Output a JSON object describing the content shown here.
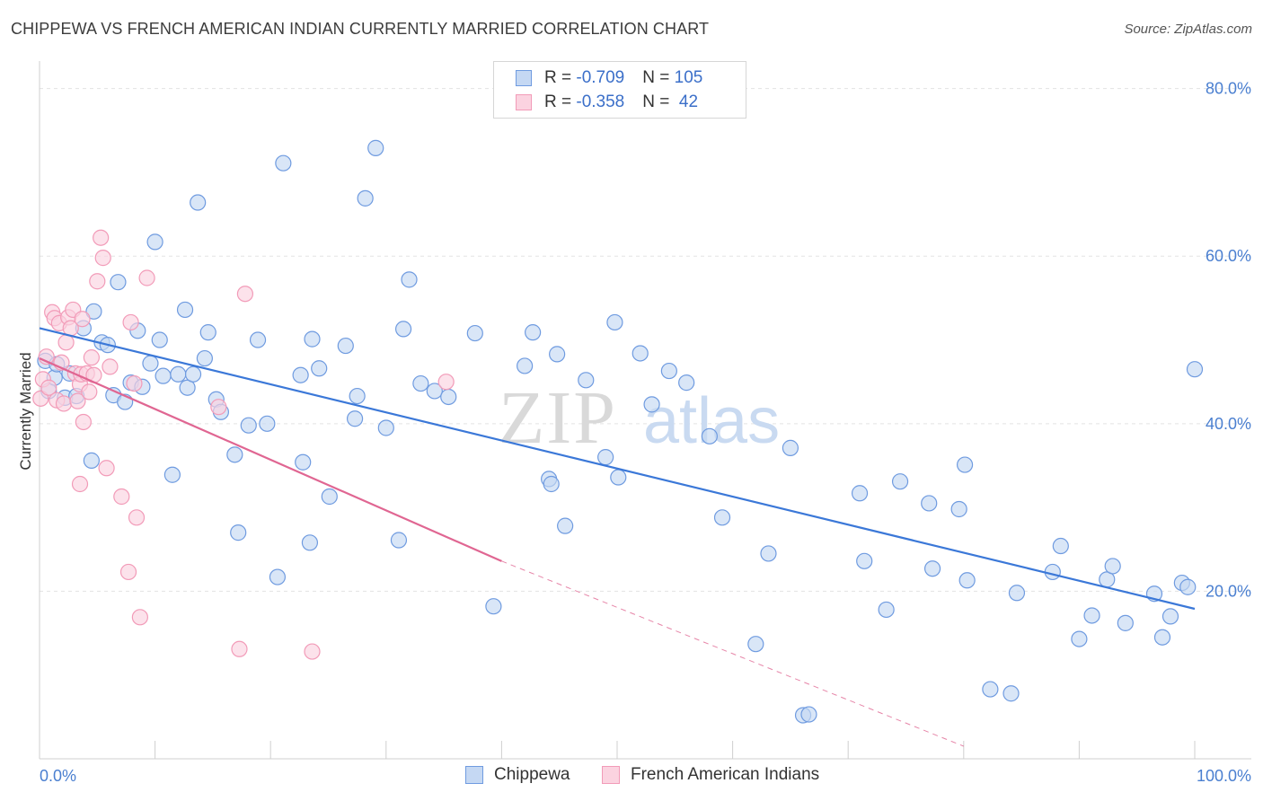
{
  "header": {
    "title": "CHIPPEWA VS FRENCH AMERICAN INDIAN CURRENTLY MARRIED CORRELATION CHART",
    "source": "Source: ZipAtlas.com"
  },
  "watermark": {
    "part1": "ZIP",
    "part2": "atlas"
  },
  "legend": {
    "rows": [
      {
        "r_label": "R = ",
        "r_value": "-0.709",
        "n_label": "N = ",
        "n_value": "105",
        "color": "#6f9be0",
        "fill": "#c5d8f3"
      },
      {
        "r_label": "R = ",
        "r_value": "-0.358",
        "n_label": "N = ",
        "n_value": " 42",
        "color": "#f29bb8",
        "fill": "#fbd3e0"
      }
    ]
  },
  "bottom_legend": {
    "items": [
      {
        "label": "Chippewa",
        "color": "#6f9be0",
        "fill": "#c5d8f3"
      },
      {
        "label": "French American Indians",
        "color": "#f29bb8",
        "fill": "#fbd3e0"
      }
    ]
  },
  "chart_data": {
    "type": "scatter",
    "ylabel": "Currently Married",
    "xlim": [
      0,
      100
    ],
    "ylim": [
      0,
      82
    ],
    "x_tick_labels": [
      "0.0%",
      "100.0%"
    ],
    "y_ticks": [
      20,
      40,
      60,
      80
    ],
    "y_tick_labels": [
      "20.0%",
      "40.0%",
      "60.0%",
      "80.0%"
    ],
    "grid": true,
    "series": [
      {
        "name": "Chippewa",
        "color": "#6f9be0",
        "fill": "#c5d8f3",
        "line_color": "#3b78d8",
        "trend": {
          "x": [
            0,
            100
          ],
          "y": [
            51.4,
            17.9
          ]
        },
        "points": [
          [
            0.5,
            47.5
          ],
          [
            0.8,
            43.9
          ],
          [
            1.3,
            45.5
          ],
          [
            1.5,
            47.1
          ],
          [
            2.2,
            43.1
          ],
          [
            2.6,
            46.0
          ],
          [
            3.2,
            43.3
          ],
          [
            3.8,
            51.4
          ],
          [
            4.5,
            35.6
          ],
          [
            4.7,
            53.4
          ],
          [
            5.4,
            49.7
          ],
          [
            5.9,
            49.4
          ],
          [
            6.4,
            43.4
          ],
          [
            6.8,
            56.9
          ],
          [
            7.4,
            42.6
          ],
          [
            7.9,
            44.9
          ],
          [
            8.5,
            51.1
          ],
          [
            8.9,
            44.4
          ],
          [
            9.6,
            47.2
          ],
          [
            10.0,
            61.7
          ],
          [
            10.4,
            50.0
          ],
          [
            10.7,
            45.7
          ],
          [
            11.5,
            33.9
          ],
          [
            12.0,
            45.9
          ],
          [
            12.6,
            53.6
          ],
          [
            12.8,
            44.3
          ],
          [
            13.3,
            45.9
          ],
          [
            13.7,
            66.4
          ],
          [
            14.3,
            47.8
          ],
          [
            14.6,
            50.9
          ],
          [
            15.3,
            42.9
          ],
          [
            15.7,
            41.4
          ],
          [
            16.9,
            36.3
          ],
          [
            17.2,
            27.0
          ],
          [
            18.1,
            39.8
          ],
          [
            18.9,
            50.0
          ],
          [
            19.7,
            40.0
          ],
          [
            20.6,
            21.7
          ],
          [
            21.1,
            71.1
          ],
          [
            22.6,
            45.8
          ],
          [
            22.8,
            35.4
          ],
          [
            23.4,
            25.8
          ],
          [
            23.6,
            50.1
          ],
          [
            24.2,
            46.6
          ],
          [
            25.1,
            31.3
          ],
          [
            26.5,
            49.3
          ],
          [
            27.3,
            40.6
          ],
          [
            27.5,
            43.3
          ],
          [
            28.2,
            66.9
          ],
          [
            29.1,
            72.9
          ],
          [
            30.0,
            39.5
          ],
          [
            31.1,
            26.1
          ],
          [
            31.5,
            51.3
          ],
          [
            32.0,
            57.2
          ],
          [
            33.0,
            44.8
          ],
          [
            34.2,
            43.9
          ],
          [
            35.4,
            43.2
          ],
          [
            37.7,
            50.8
          ],
          [
            39.3,
            18.2
          ],
          [
            42.0,
            46.9
          ],
          [
            42.7,
            50.9
          ],
          [
            44.1,
            33.4
          ],
          [
            44.3,
            32.8
          ],
          [
            44.8,
            48.3
          ],
          [
            45.5,
            27.8
          ],
          [
            47.3,
            45.2
          ],
          [
            49.0,
            36.0
          ],
          [
            49.8,
            52.1
          ],
          [
            50.1,
            33.6
          ],
          [
            52.0,
            48.4
          ],
          [
            53.0,
            42.3
          ],
          [
            54.5,
            46.3
          ],
          [
            56.0,
            44.9
          ],
          [
            58.0,
            38.5
          ],
          [
            59.1,
            28.8
          ],
          [
            62.0,
            13.7
          ],
          [
            63.1,
            24.5
          ],
          [
            65.0,
            37.1
          ],
          [
            66.1,
            5.2
          ],
          [
            66.6,
            5.3
          ],
          [
            71.0,
            31.7
          ],
          [
            71.4,
            23.6
          ],
          [
            73.3,
            17.8
          ],
          [
            74.5,
            33.1
          ],
          [
            77.0,
            30.5
          ],
          [
            77.3,
            22.7
          ],
          [
            79.6,
            29.8
          ],
          [
            80.1,
            35.1
          ],
          [
            80.3,
            21.3
          ],
          [
            82.3,
            8.3
          ],
          [
            84.1,
            7.8
          ],
          [
            84.6,
            19.8
          ],
          [
            87.7,
            22.3
          ],
          [
            88.4,
            25.4
          ],
          [
            90.0,
            14.3
          ],
          [
            91.1,
            17.1
          ],
          [
            92.4,
            21.4
          ],
          [
            92.9,
            23.0
          ],
          [
            94.0,
            16.2
          ],
          [
            96.5,
            19.7
          ],
          [
            97.2,
            14.5
          ],
          [
            97.9,
            17.0
          ],
          [
            98.9,
            21.0
          ],
          [
            99.4,
            20.5
          ],
          [
            100.0,
            46.5
          ]
        ]
      },
      {
        "name": "French American Indians",
        "color": "#f29bb8",
        "fill": "#fbd3e0",
        "line_color": "#e06692",
        "trend": {
          "x": [
            0,
            40
          ],
          "y": [
            47.8,
            23.6
          ]
        },
        "trend_dashed": {
          "x": [
            40,
            80
          ],
          "y": [
            23.6,
            1.5
          ]
        },
        "points": [
          [
            0.1,
            43.0
          ],
          [
            0.3,
            45.3
          ],
          [
            0.6,
            48.0
          ],
          [
            0.8,
            44.3
          ],
          [
            1.1,
            53.3
          ],
          [
            1.3,
            52.6
          ],
          [
            1.5,
            42.8
          ],
          [
            1.7,
            52.0
          ],
          [
            1.9,
            47.3
          ],
          [
            2.1,
            42.4
          ],
          [
            2.3,
            49.7
          ],
          [
            2.5,
            52.7
          ],
          [
            2.7,
            51.4
          ],
          [
            2.9,
            53.6
          ],
          [
            3.1,
            46.0
          ],
          [
            3.3,
            42.7
          ],
          [
            3.5,
            44.7
          ],
          [
            3.6,
            45.9
          ],
          [
            3.7,
            52.5
          ],
          [
            3.8,
            40.2
          ],
          [
            4.1,
            46.0
          ],
          [
            4.3,
            43.8
          ],
          [
            4.5,
            47.9
          ],
          [
            4.7,
            45.8
          ],
          [
            5.0,
            57.0
          ],
          [
            5.3,
            62.2
          ],
          [
            5.5,
            59.8
          ],
          [
            5.8,
            34.7
          ],
          [
            6.1,
            46.8
          ],
          [
            7.1,
            31.3
          ],
          [
            7.7,
            22.3
          ],
          [
            7.9,
            52.1
          ],
          [
            8.2,
            44.8
          ],
          [
            8.4,
            28.8
          ],
          [
            8.7,
            16.9
          ],
          [
            9.3,
            57.4
          ],
          [
            15.5,
            42.0
          ],
          [
            17.3,
            13.1
          ],
          [
            17.8,
            55.5
          ],
          [
            23.6,
            12.8
          ],
          [
            35.2,
            45.0
          ],
          [
            3.5,
            32.8
          ]
        ]
      }
    ]
  }
}
